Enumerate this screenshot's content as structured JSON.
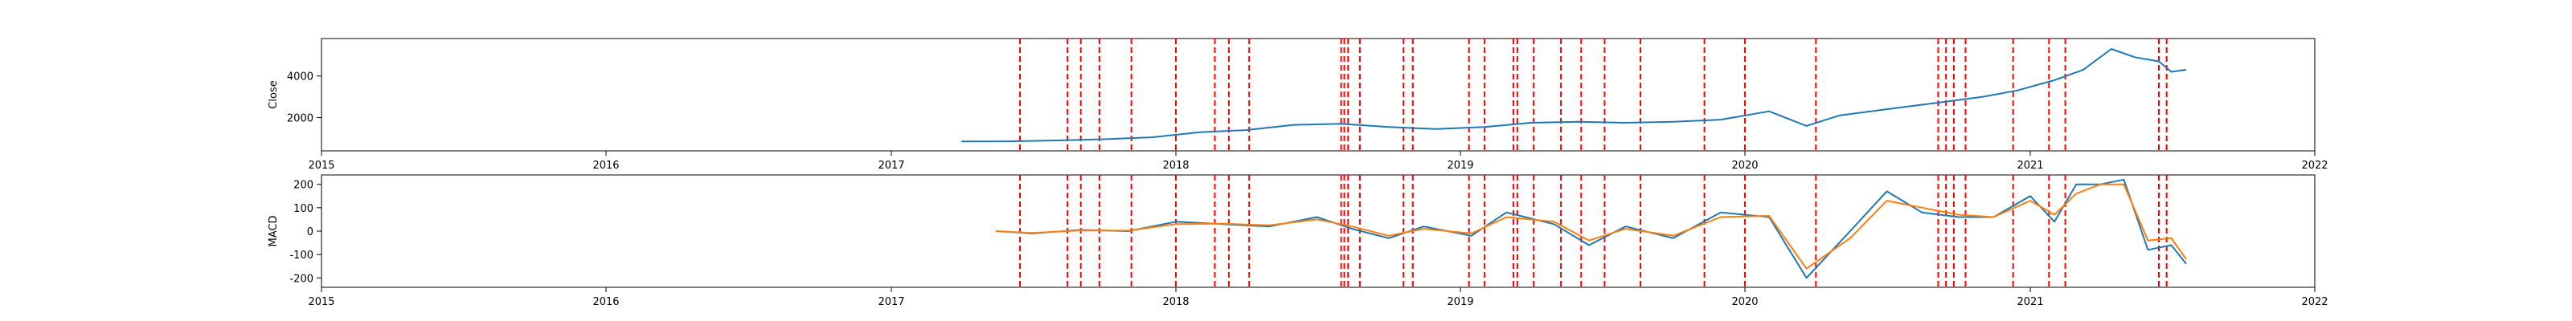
{
  "chart_data": [
    {
      "type": "line",
      "ylabel": "Close",
      "xlim": [
        "2015-01-01",
        "2022-01-01"
      ],
      "ylim": [
        400,
        5800
      ],
      "x_ticks": [
        "2015",
        "2016",
        "2017",
        "2018",
        "2019",
        "2020",
        "2021",
        "2022"
      ],
      "y_ticks": [
        2000,
        4000
      ],
      "grid": false,
      "colors": {
        "line": "#1f77b4",
        "event_lines": "#ff0000"
      },
      "series": [
        {
          "x": [
            "2017-04-01",
            "2017-06-01",
            "2017-08-01",
            "2017-10-01",
            "2017-12-01",
            "2018-02-01",
            "2018-04-01",
            "2018-06-01",
            "2018-08-01",
            "2018-10-01",
            "2018-12-01",
            "2019-02-01",
            "2019-04-01",
            "2019-06-01",
            "2019-08-01",
            "2019-10-01",
            "2019-12-01",
            "2020-02-01",
            "2020-03-20",
            "2020-05-01",
            "2020-07-01",
            "2020-09-01",
            "2020-11-01",
            "2020-12-15",
            "2021-02-01",
            "2021-03-10",
            "2021-04-15",
            "2021-05-15",
            "2021-06-15",
            "2021-07-01",
            "2021-07-20"
          ],
          "values": [
            850,
            860,
            900,
            960,
            1050,
            1300,
            1400,
            1650,
            1700,
            1550,
            1450,
            1550,
            1750,
            1800,
            1750,
            1800,
            1900,
            2300,
            1600,
            2100,
            2400,
            2700,
            3000,
            3300,
            3800,
            4300,
            5300,
            4900,
            4700,
            4200,
            4300
          ]
        }
      ]
    },
    {
      "type": "line",
      "ylabel": "MACD",
      "xlim": [
        "2015-01-01",
        "2022-01-01"
      ],
      "ylim": [
        -240,
        240
      ],
      "x_ticks": [
        "2015",
        "2016",
        "2017",
        "2018",
        "2019",
        "2020",
        "2021",
        "2022"
      ],
      "y_ticks": [
        -200,
        -100,
        0,
        100,
        200
      ],
      "grid": false,
      "colors": {
        "macd": "#1f77b4",
        "signal": "#ff7f0e",
        "event_lines": "#ff0000"
      },
      "series": [
        {
          "x": [
            "2017-05-15",
            "2017-07-01",
            "2017-09-01",
            "2017-11-01",
            "2018-01-01",
            "2018-03-01",
            "2018-05-01",
            "2018-07-01",
            "2018-08-15",
            "2018-10-01",
            "2018-11-15",
            "2019-01-15",
            "2019-03-01",
            "2019-05-01",
            "2019-06-15",
            "2019-08-01",
            "2019-10-01",
            "2019-12-01",
            "2020-02-01",
            "2020-03-20",
            "2020-05-15",
            "2020-07-01",
            "2020-08-15",
            "2020-10-01",
            "2020-11-15",
            "2021-01-01",
            "2021-02-01",
            "2021-03-01",
            "2021-04-01",
            "2021-05-01",
            "2021-06-01",
            "2021-07-01",
            "2021-07-20"
          ],
          "values": [
            0,
            -10,
            5,
            0,
            40,
            30,
            20,
            60,
            10,
            -30,
            20,
            -20,
            80,
            30,
            -60,
            20,
            -30,
            80,
            60,
            -200,
            0,
            170,
            80,
            60,
            60,
            150,
            40,
            200,
            200,
            220,
            -80,
            -60,
            -140
          ]
        },
        {
          "x": [
            "2017-05-15",
            "2017-07-01",
            "2017-09-01",
            "2017-11-01",
            "2018-01-01",
            "2018-03-01",
            "2018-05-01",
            "2018-07-01",
            "2018-08-15",
            "2018-10-01",
            "2018-11-15",
            "2019-01-15",
            "2019-03-01",
            "2019-05-01",
            "2019-06-15",
            "2019-08-01",
            "2019-10-01",
            "2019-12-01",
            "2020-02-01",
            "2020-03-20",
            "2020-05-15",
            "2020-07-01",
            "2020-08-15",
            "2020-10-01",
            "2020-11-15",
            "2021-01-01",
            "2021-02-01",
            "2021-03-01",
            "2021-04-01",
            "2021-05-01",
            "2021-06-01",
            "2021-07-01",
            "2021-07-20"
          ],
          "values": [
            0,
            -8,
            3,
            2,
            30,
            32,
            25,
            50,
            20,
            -20,
            10,
            -10,
            60,
            40,
            -40,
            10,
            -20,
            60,
            65,
            -160,
            -30,
            130,
            100,
            70,
            60,
            130,
            70,
            160,
            200,
            200,
            -40,
            -30,
            -120
          ]
        }
      ]
    }
  ],
  "event_dates": [
    "2017-06-15",
    "2017-08-15",
    "2017-09-01",
    "2017-09-25",
    "2017-11-05",
    "2018-01-01",
    "2018-02-20",
    "2018-03-10",
    "2018-04-05",
    "2018-08-01",
    "2018-08-05",
    "2018-08-10",
    "2018-08-25",
    "2018-10-20",
    "2018-11-01",
    "2019-01-12",
    "2019-02-01",
    "2019-03-10",
    "2019-03-15",
    "2019-04-05",
    "2019-05-10",
    "2019-06-05",
    "2019-07-05",
    "2019-08-20",
    "2019-11-10",
    "2020-01-01",
    "2020-04-01",
    "2020-09-05",
    "2020-09-15",
    "2020-09-25",
    "2020-10-10",
    "2020-12-10",
    "2021-01-25",
    "2021-02-15",
    "2021-06-15",
    "2021-06-25"
  ]
}
